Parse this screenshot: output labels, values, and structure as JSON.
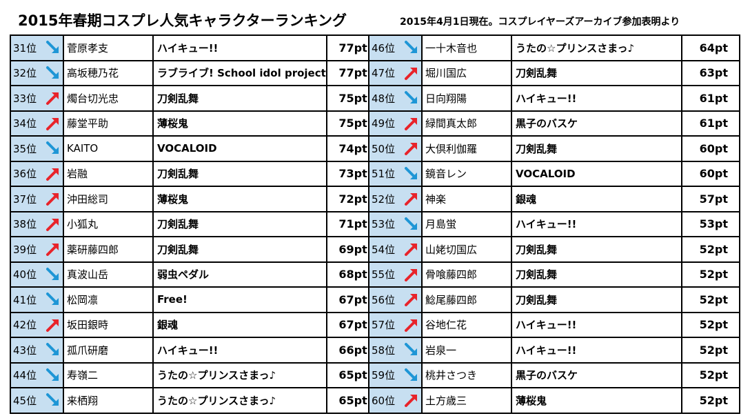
{
  "header": {
    "title": "2015年春期コスプレ人気キャラクターランキング",
    "subtitle": "2015年4月1日現在。コスプレイヤーズアーカイブ参加表明より"
  },
  "colors": {
    "rank_bg": "#c7dff1",
    "up": "#e8232a",
    "down": "#1e96d6"
  },
  "left_rows": [
    {
      "rank": "31位",
      "trend": "down",
      "name": "菅原孝支",
      "series": "ハイキュー!!",
      "points": "77pt"
    },
    {
      "rank": "32位",
      "trend": "down",
      "name": "高坂穂乃花",
      "series": "ラブライブ! School idol project",
      "points": "77pt"
    },
    {
      "rank": "33位",
      "trend": "up",
      "name": "燭台切光忠",
      "series": "刀剣乱舞",
      "points": "75pt"
    },
    {
      "rank": "34位",
      "trend": "up",
      "name": "藤堂平助",
      "series": "薄桜鬼",
      "points": "75pt"
    },
    {
      "rank": "35位",
      "trend": "down",
      "name": "KAITO",
      "series": "VOCALOID",
      "points": "74pt"
    },
    {
      "rank": "36位",
      "trend": "up",
      "name": "岩融",
      "series": "刀剣乱舞",
      "points": "73pt"
    },
    {
      "rank": "37位",
      "trend": "up",
      "name": "沖田総司",
      "series": "薄桜鬼",
      "points": "72pt"
    },
    {
      "rank": "38位",
      "trend": "up",
      "name": "小狐丸",
      "series": "刀剣乱舞",
      "points": "71pt"
    },
    {
      "rank": "39位",
      "trend": "up",
      "name": "薬研藤四郎",
      "series": "刀剣乱舞",
      "points": "69pt"
    },
    {
      "rank": "40位",
      "trend": "down",
      "name": "真波山岳",
      "series": "弱虫ペダル",
      "points": "68pt"
    },
    {
      "rank": "41位",
      "trend": "down",
      "name": "松岡凛",
      "series": "Free!",
      "points": "67pt"
    },
    {
      "rank": "42位",
      "trend": "up",
      "name": "坂田銀時",
      "series": "銀魂",
      "points": "67pt"
    },
    {
      "rank": "43位",
      "trend": "down",
      "name": "孤爪研磨",
      "series": "ハイキュー!!",
      "points": "66pt"
    },
    {
      "rank": "44位",
      "trend": "down",
      "name": "寿嶺二",
      "series": "うたの☆プリンスさまっ♪",
      "points": "65pt"
    },
    {
      "rank": "45位",
      "trend": "down",
      "name": "来栖翔",
      "series": "うたの☆プリンスさまっ♪",
      "points": "65pt"
    }
  ],
  "right_rows": [
    {
      "rank": "46位",
      "trend": "down",
      "name": "一十木音也",
      "series": "うたの☆プリンスさまっ♪",
      "points": "64pt"
    },
    {
      "rank": "47位",
      "trend": "up",
      "name": "堀川国広",
      "series": "刀剣乱舞",
      "points": "63pt"
    },
    {
      "rank": "48位",
      "trend": "down",
      "name": "日向翔陽",
      "series": "ハイキュー!!",
      "points": "61pt"
    },
    {
      "rank": "49位",
      "trend": "up",
      "name": "緑間真太郎",
      "series": "黒子のバスケ",
      "points": "61pt"
    },
    {
      "rank": "50位",
      "trend": "up",
      "name": "大倶利伽羅",
      "series": "刀剣乱舞",
      "points": "60pt"
    },
    {
      "rank": "51位",
      "trend": "down",
      "name": "鏡音レン",
      "series": "VOCALOID",
      "points": "60pt"
    },
    {
      "rank": "52位",
      "trend": "up",
      "name": "神楽",
      "series": "銀魂",
      "points": "57pt"
    },
    {
      "rank": "53位",
      "trend": "down",
      "name": "月島蛍",
      "series": "ハイキュー!!",
      "points": "53pt"
    },
    {
      "rank": "54位",
      "trend": "up",
      "name": "山姥切国広",
      "series": "刀剣乱舞",
      "points": "52pt"
    },
    {
      "rank": "55位",
      "trend": "up",
      "name": "骨喰藤四郎",
      "series": "刀剣乱舞",
      "points": "52pt"
    },
    {
      "rank": "56位",
      "trend": "up",
      "name": "鯰尾藤四郎",
      "series": "刀剣乱舞",
      "points": "52pt"
    },
    {
      "rank": "57位",
      "trend": "up",
      "name": "谷地仁花",
      "series": "ハイキュー!!",
      "points": "52pt"
    },
    {
      "rank": "58位",
      "trend": "down",
      "name": "岩泉一",
      "series": "ハイキュー!!",
      "points": "52pt"
    },
    {
      "rank": "59位",
      "trend": "down",
      "name": "桃井さつき",
      "series": "黒子のバスケ",
      "points": "52pt"
    },
    {
      "rank": "60位",
      "trend": "up",
      "name": "土方歳三",
      "series": "薄桜鬼",
      "points": "52pt"
    }
  ]
}
